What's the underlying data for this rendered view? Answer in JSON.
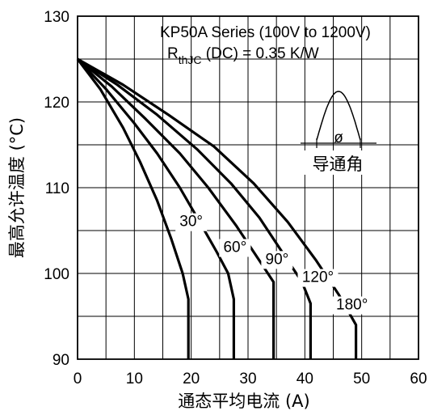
{
  "chart_data": {
    "type": "line",
    "title": "KP50A Series (100V to 1200V)",
    "subtitle": {
      "symbol": "R",
      "subscript": "thJC",
      "rest": " (DC) = 0.35 K/W"
    },
    "xlabel": "通态平均电流 (A)",
    "ylabel": "最高允许温度 (°C)",
    "xlim": [
      0,
      60
    ],
    "ylim": [
      90,
      130
    ],
    "xticks": [
      0,
      10,
      20,
      30,
      40,
      50,
      60
    ],
    "yticks": [
      90,
      100,
      110,
      120,
      130
    ],
    "grid": true,
    "inset": {
      "label": "导通角",
      "symbol": "ø"
    },
    "series": [
      {
        "name": "30°",
        "points": [
          [
            0,
            125
          ],
          [
            4,
            121.5
          ],
          [
            8,
            117
          ],
          [
            11,
            113
          ],
          [
            14,
            108.5
          ],
          [
            16.5,
            104
          ],
          [
            18.5,
            100
          ],
          [
            19.5,
            97
          ],
          [
            19.5,
            90
          ]
        ]
      },
      {
        "name": "60°",
        "points": [
          [
            0,
            125
          ],
          [
            5,
            121.5
          ],
          [
            10,
            117.5
          ],
          [
            14,
            114
          ],
          [
            18,
            110
          ],
          [
            21.5,
            106
          ],
          [
            24.5,
            102.5
          ],
          [
            26.5,
            100
          ],
          [
            27.5,
            97
          ],
          [
            27.5,
            90
          ]
        ]
      },
      {
        "name": "90°",
        "points": [
          [
            0,
            125
          ],
          [
            6,
            121.8
          ],
          [
            12,
            118
          ],
          [
            18,
            114
          ],
          [
            23,
            110
          ],
          [
            28,
            105.5
          ],
          [
            32,
            101.5
          ],
          [
            34.5,
            99
          ],
          [
            34.5,
            97
          ],
          [
            34.5,
            90
          ]
        ]
      },
      {
        "name": "120°",
        "points": [
          [
            0,
            125
          ],
          [
            7,
            122
          ],
          [
            14,
            118.5
          ],
          [
            21,
            114.5
          ],
          [
            27,
            110.5
          ],
          [
            32,
            106.5
          ],
          [
            36.5,
            102
          ],
          [
            39.5,
            99
          ],
          [
            41,
            96.5
          ],
          [
            41,
            90
          ]
        ]
      },
      {
        "name": "180°",
        "points": [
          [
            0,
            125
          ],
          [
            8,
            122
          ],
          [
            16,
            118.5
          ],
          [
            24,
            114.8
          ],
          [
            31,
            110.5
          ],
          [
            37,
            106
          ],
          [
            42,
            101.5
          ],
          [
            46,
            97.5
          ],
          [
            49,
            94
          ],
          [
            49,
            90
          ]
        ]
      }
    ],
    "label_texts": [
      "30°",
      "60°",
      "90°",
      "120°",
      "180°"
    ]
  }
}
